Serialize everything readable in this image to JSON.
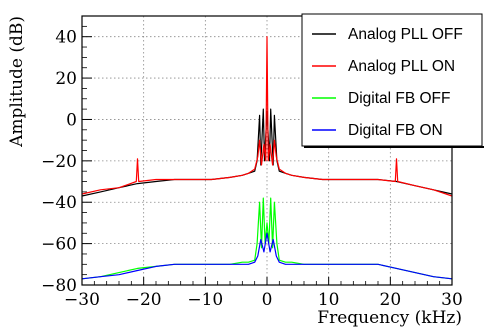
{
  "chart_data": {
    "type": "line",
    "title": "",
    "xlabel": "Frequency (kHz)",
    "ylabel": "Amplitude (dB)",
    "xlim": [
      -30,
      30
    ],
    "ylim": [
      -80,
      50
    ],
    "xticks": [
      -30,
      -20,
      -10,
      0,
      10,
      20,
      30
    ],
    "yticks": [
      -80,
      -60,
      -40,
      -20,
      0,
      20,
      40
    ],
    "grid": true,
    "legend_position": "top-right",
    "series": [
      {
        "name": "Analog PLL OFF",
        "color": "#000000",
        "x": [
          -30,
          -27,
          -24,
          -21,
          -18,
          -15,
          -12,
          -9,
          -6,
          -4,
          -3,
          -2,
          -1.6,
          -1.2,
          -1.0,
          -0.6,
          -0.4,
          0,
          0.4,
          0.6,
          1.0,
          1.2,
          1.6,
          2,
          3,
          4,
          6,
          9,
          12,
          15,
          18,
          21,
          24,
          27,
          30
        ],
        "y": [
          -37,
          -35,
          -33,
          -31,
          -30,
          -29,
          -29,
          -29,
          -28,
          -27,
          -26,
          -25,
          -20,
          2,
          -22,
          5,
          -20,
          4,
          -20,
          5,
          -22,
          2,
          -20,
          -25,
          -26,
          -27,
          -28,
          -29,
          -29,
          -29,
          -29,
          -30,
          -32,
          -34,
          -36
        ]
      },
      {
        "name": "Analog PLL ON",
        "color": "#ff0000",
        "x": [
          -30,
          -27,
          -24,
          -21.2,
          -21,
          -20.8,
          -18,
          -15,
          -12,
          -9,
          -6,
          -4,
          -3,
          -2,
          -1.5,
          -1.2,
          -0.9,
          -0.5,
          -0.2,
          0,
          0.2,
          0.5,
          0.9,
          1.2,
          1.5,
          2,
          3,
          4,
          6,
          9,
          12,
          15,
          18,
          20.8,
          21,
          21.2,
          24,
          27,
          30
        ],
        "y": [
          -36,
          -34,
          -33,
          -30,
          -19,
          -30,
          -29,
          -29,
          -29,
          -29,
          -28,
          -27,
          -26,
          -24,
          -18,
          -10,
          -22,
          -12,
          -20,
          40,
          -20,
          -12,
          -22,
          -10,
          -18,
          -24,
          -26,
          -27,
          -28,
          -29,
          -29,
          -29,
          -29,
          -30,
          -19,
          -30,
          -32,
          -34,
          -37
        ]
      },
      {
        "name": "Digital FB OFF",
        "color": "#00ff00",
        "x": [
          -30,
          -27,
          -24,
          -21,
          -18,
          -15,
          -12,
          -9,
          -6,
          -4,
          -3,
          -2,
          -1.6,
          -1.2,
          -0.9,
          -0.6,
          -0.3,
          0,
          0.3,
          0.6,
          0.9,
          1.2,
          1.6,
          2,
          3,
          4,
          6,
          9,
          12,
          15,
          18,
          21,
          24,
          27,
          30
        ],
        "y": [
          -77,
          -76,
          -74,
          -72,
          -71,
          -70,
          -70,
          -70,
          -70,
          -69,
          -69,
          -68,
          -60,
          -40,
          -62,
          -38,
          -60,
          -50,
          -60,
          -38,
          -62,
          -40,
          -60,
          -68,
          -69,
          -69,
          -70,
          -70,
          -70,
          -70,
          -70,
          -72,
          -74,
          -76,
          -77
        ]
      },
      {
        "name": "Digital FB ON",
        "color": "#0000ff",
        "x": [
          -30,
          -27,
          -24,
          -21,
          -18,
          -15,
          -12,
          -9,
          -6,
          -4,
          -3,
          -2,
          -1.5,
          -1.0,
          -0.5,
          0,
          0.5,
          1.0,
          1.5,
          2,
          3,
          4,
          6,
          9,
          12,
          15,
          18,
          21,
          24,
          27,
          30
        ],
        "y": [
          -77,
          -76,
          -75,
          -73,
          -71,
          -70,
          -70,
          -70,
          -70,
          -70,
          -70,
          -69,
          -66,
          -58,
          -64,
          -55,
          -64,
          -58,
          -66,
          -69,
          -70,
          -70,
          -70,
          -70,
          -70,
          -70,
          -70,
          -72,
          -74,
          -76,
          -77
        ]
      }
    ]
  }
}
